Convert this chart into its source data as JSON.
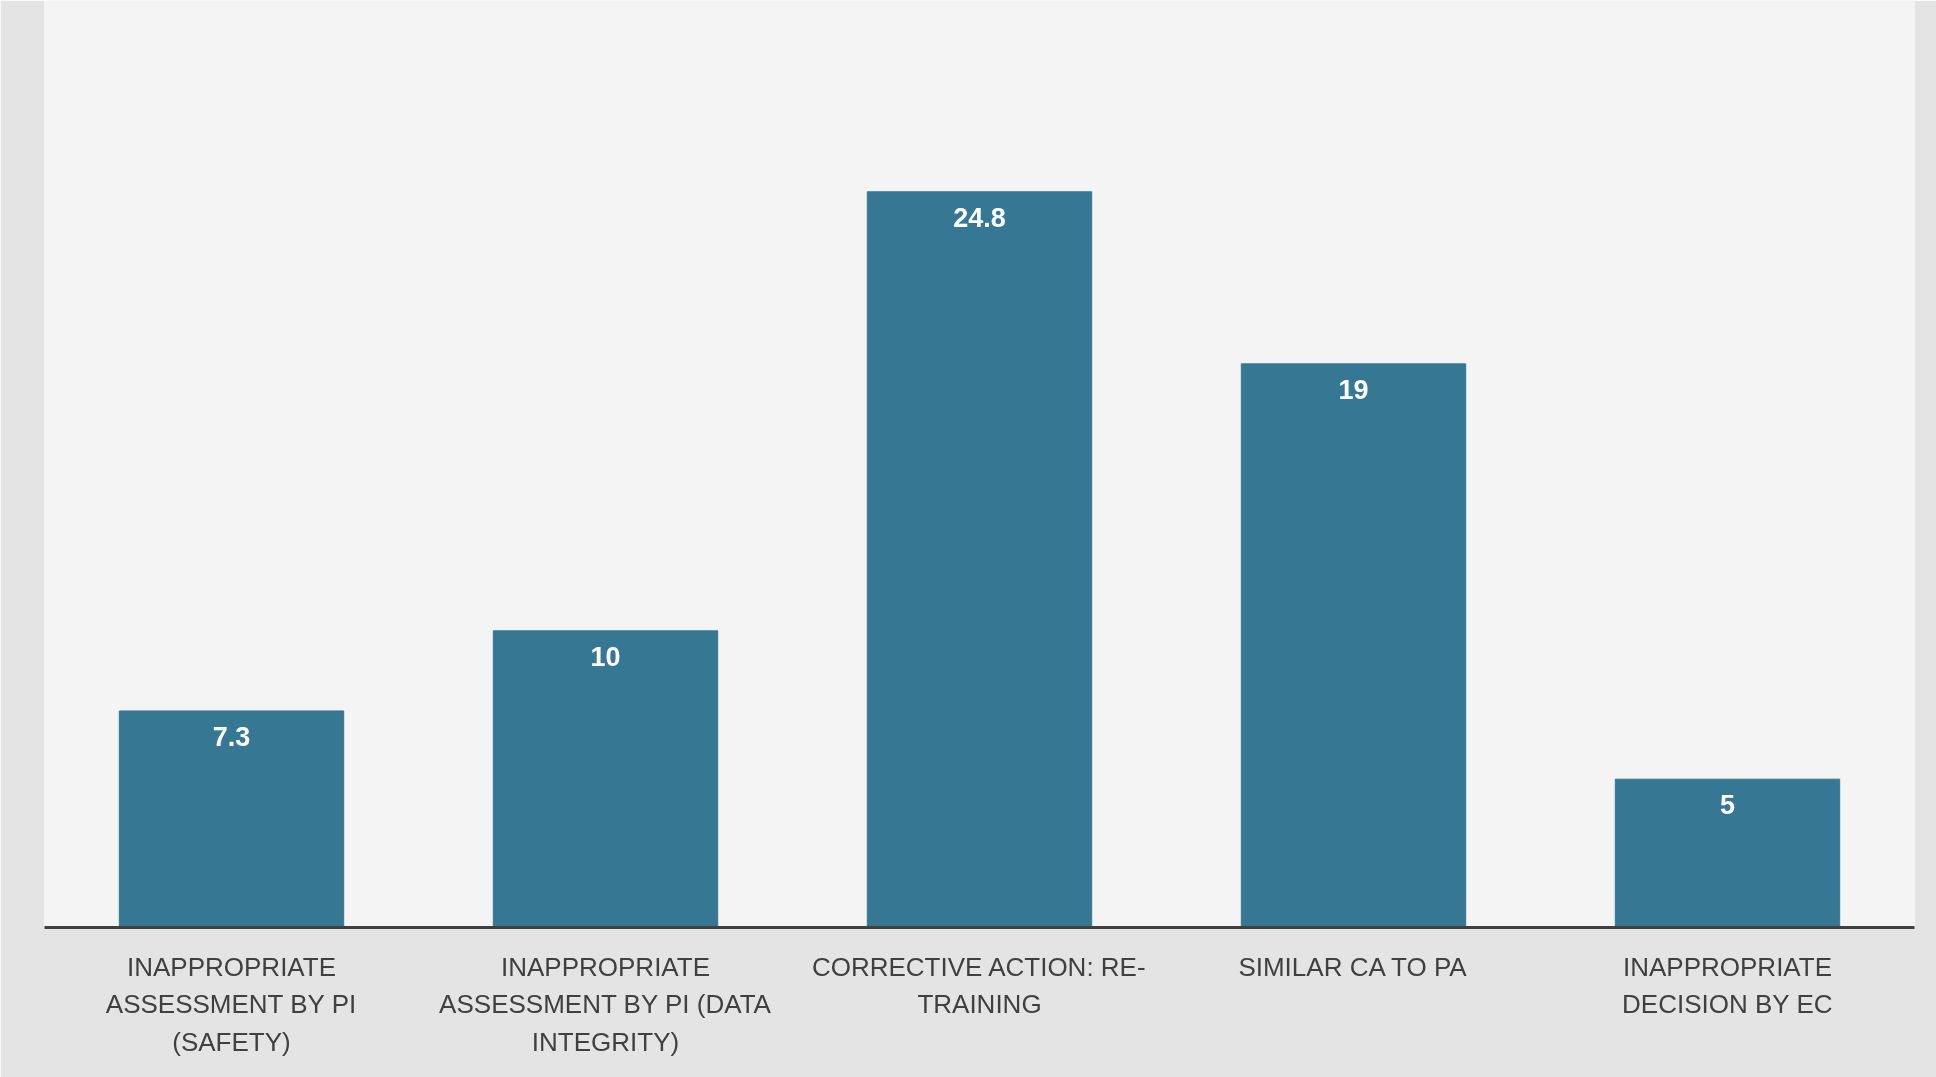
{
  "chart_data": {
    "type": "bar",
    "categories": [
      "INAPPROPRIATE\nASSESSMENT BY PI\n(SAFETY)",
      "INAPPROPRIATE\nASSESSMENT BY PI (DATA\nINTEGRITY)",
      "CORRECTIVE ACTION: RE-\nTRAINING",
      "SIMILAR CA TO PA",
      "INAPPROPRIATE\nDECISION BY EC"
    ],
    "values": [
      7.3,
      10,
      24.8,
      19,
      5
    ],
    "color": "#367893",
    "data_labels": true
  }
}
